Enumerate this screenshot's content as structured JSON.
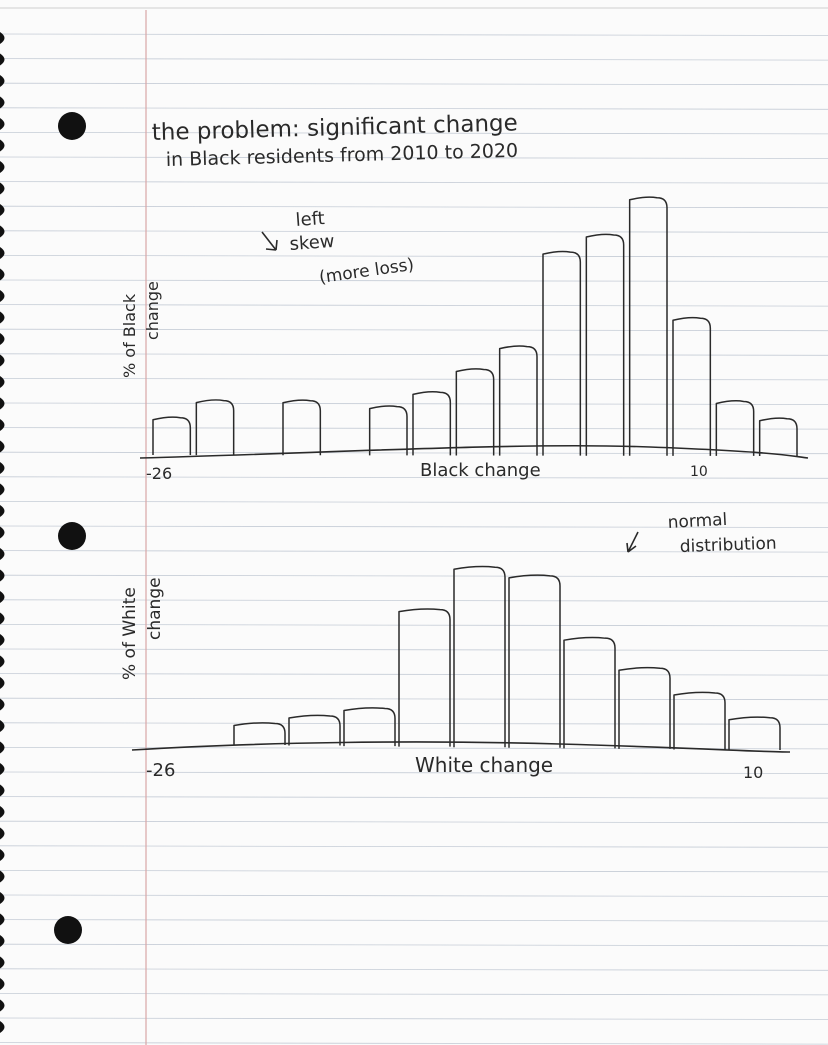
{
  "page": {
    "title_line1": "the problem: significant change",
    "title_line2": "in Black residents from 2010  to 2020"
  },
  "colors": {
    "ink": "#2a2a2a",
    "rule": "#9aa6b8",
    "margin": "#d9a6a6",
    "hole": "#111111"
  },
  "chart_data": [
    {
      "type": "bar",
      "xlabel": "Black change",
      "ylabel_line1": "% of Black",
      "ylabel_line2": "change",
      "x_min_label": "-26",
      "x_max_label": "10",
      "annotation_lines": [
        "left",
        "skew",
        "(more loss)"
      ],
      "values": [
        13,
        19,
        0,
        19,
        0,
        17,
        22,
        30,
        38,
        71,
        77,
        90,
        48,
        19,
        13
      ]
    },
    {
      "type": "bar",
      "xlabel": "White change",
      "ylabel_line1": "% of White",
      "ylabel_line2": "change",
      "x_min_label": "-26",
      "x_max_label": "10",
      "annotation_lines": [
        "normal",
        "distribution"
      ],
      "values": [
        8,
        11,
        14,
        51,
        67,
        64,
        41,
        30,
        21,
        12
      ]
    }
  ]
}
